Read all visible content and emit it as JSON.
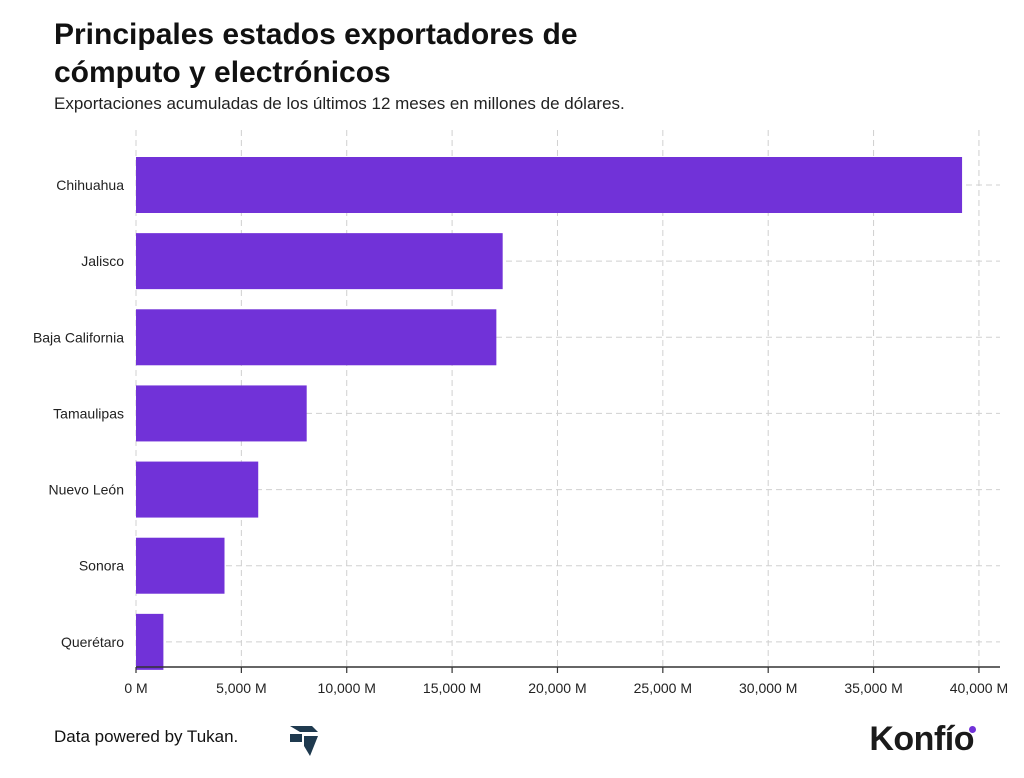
{
  "header": {
    "title": "Principales estados exportadores de cómputo y electrónicos",
    "subtitle": "Exportaciones acumuladas de los últimos 12 meses en millones de dólares."
  },
  "footer": {
    "credit": "Data powered by Tukan.",
    "brand": "Konfío"
  },
  "colors": {
    "bar": "#7132d8",
    "grid": "#d0d0d0",
    "axis": "#333333"
  },
  "chart_data": {
    "type": "bar",
    "orientation": "horizontal",
    "categories": [
      "Chihuahua",
      "Jalisco",
      "Baja California",
      "Tamaulipas",
      "Nuevo León",
      "Sonora",
      "Querétaro"
    ],
    "values": [
      39200,
      17400,
      17100,
      8100,
      5800,
      4200,
      1300
    ],
    "xlim": [
      0,
      41000
    ],
    "xticks": [
      0,
      5000,
      10000,
      15000,
      20000,
      25000,
      30000,
      35000,
      40000
    ],
    "xtick_labels": [
      "0 M",
      "5,000 M",
      "10,000 M",
      "15,000 M",
      "20,000 M",
      "25,000 M",
      "30,000 M",
      "35,000 M",
      "40,000 M"
    ],
    "grid": true
  }
}
